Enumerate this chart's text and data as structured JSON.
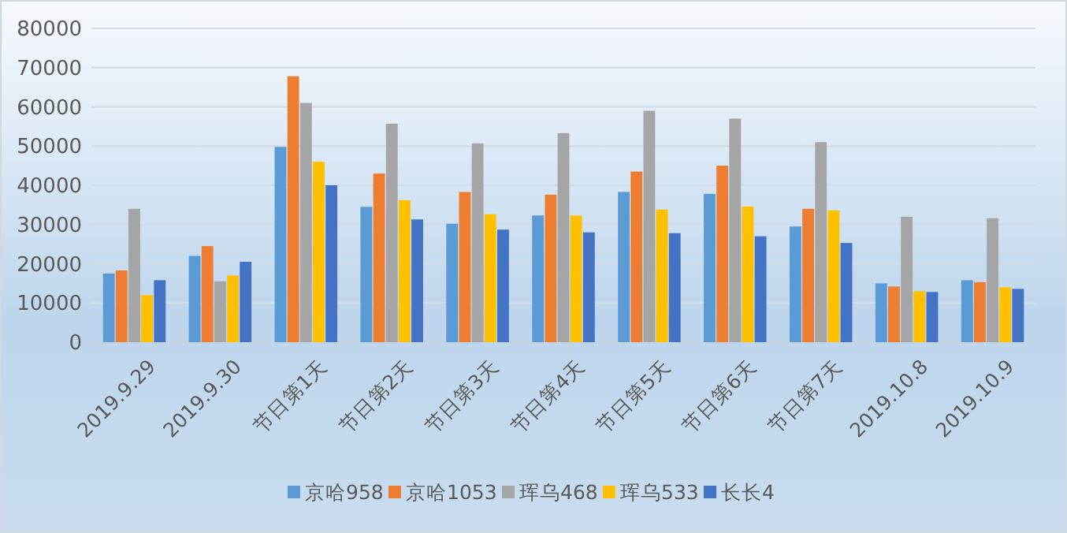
{
  "chart_data": {
    "type": "bar",
    "categories": [
      "2019.9.29",
      "2019.9.30",
      "节日第1天",
      "节日第2天",
      "节日第3天",
      "节日第4天",
      "节日第5天",
      "节日第6天",
      "节日第7天",
      "2019.10.8",
      "2019.10.9"
    ],
    "series": [
      {
        "name": "京哈958",
        "color": "#5b9bd5",
        "values": [
          17500,
          22000,
          49800,
          34500,
          30200,
          32300,
          38300,
          37800,
          29500,
          15000,
          15800
        ]
      },
      {
        "name": "京哈1053",
        "color": "#ed7d31",
        "values": [
          18300,
          24500,
          67800,
          43000,
          38300,
          37600,
          43500,
          45000,
          34000,
          14200,
          15300
        ]
      },
      {
        "name": "珲乌468",
        "color": "#a5a5a5",
        "values": [
          34000,
          15500,
          61000,
          55700,
          50700,
          53300,
          59000,
          57000,
          51000,
          32000,
          31600
        ]
      },
      {
        "name": "珲乌533",
        "color": "#ffc000",
        "values": [
          12000,
          17000,
          46000,
          36200,
          32600,
          32300,
          33800,
          34600,
          33600,
          13000,
          14000
        ]
      },
      {
        "name": "长长4",
        "color": "#4472c4",
        "values": [
          15800,
          20500,
          40000,
          31300,
          28700,
          28000,
          27800,
          27000,
          25300,
          12800,
          13600
        ]
      }
    ],
    "ylim": [
      0,
      80000
    ],
    "yticks": [
      0,
      10000,
      20000,
      30000,
      40000,
      50000,
      60000,
      70000,
      80000
    ],
    "grid": "y",
    "legend": "bottom"
  }
}
